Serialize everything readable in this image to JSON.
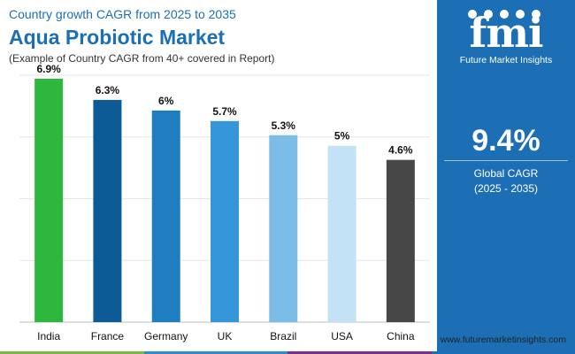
{
  "header": {
    "subtitle_top": "Country growth CAGR from 2025 to 2035",
    "title": "Aqua Probiotic Market",
    "note": "(Example of Country CAGR from 40+ covered in Report)"
  },
  "panel": {
    "logo_text": "fmi",
    "logo_name": "Future Market Insights",
    "cagr_value": "9.4%",
    "cagr_label": "Global CAGR",
    "cagr_period": "(2025 - 2035)"
  },
  "website": "www.futuremarketinsights.com",
  "colors": {
    "title": "#1b6fb5",
    "panel_bg": "#1c6fb4",
    "bottom_strip": [
      "#79b844",
      "#2f8bd1",
      "#7a2f8e",
      "#1c6fb4"
    ]
  },
  "chart_data": {
    "type": "bar",
    "categories": [
      "India",
      "France",
      "Germany",
      "UK",
      "Brazil",
      "USA",
      "China"
    ],
    "values": [
      6.9,
      6.3,
      6.0,
      5.7,
      5.3,
      5.0,
      4.6
    ],
    "value_labels": [
      "6.9%",
      "6.3%",
      "6%",
      "5.7%",
      "5.3%",
      "5%",
      "4.6%"
    ],
    "colors": [
      "#2db83d",
      "#0c5a96",
      "#1f7ec0",
      "#3597da",
      "#7cbde8",
      "#c3e2f5",
      "#474747"
    ],
    "ylim": [
      0,
      7
    ],
    "grid": true
  }
}
